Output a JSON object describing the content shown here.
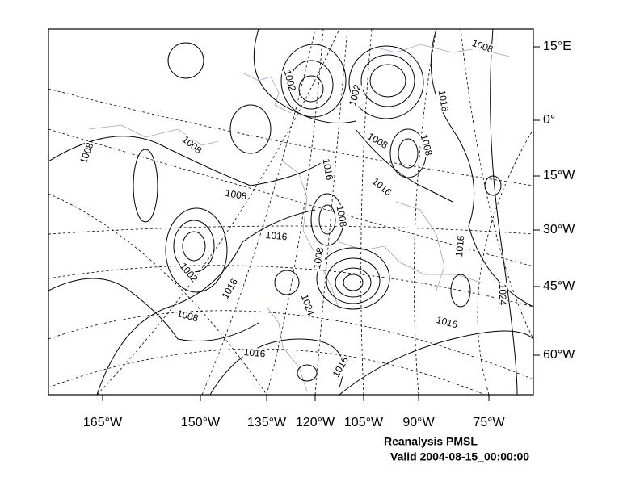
{
  "map": {
    "lat_labels": [
      "15°E",
      "0°",
      "15°W",
      "30°W",
      "45°W",
      "60°W"
    ],
    "lon_labels": [
      "165°W",
      "150°W",
      "135°W",
      "120°W",
      "105°W",
      "90°W",
      "75°W"
    ],
    "contour_labels": [
      "1008",
      "1008",
      "1002",
      "1002",
      "1016",
      "1008",
      "1008",
      "1008",
      "1016",
      "1016",
      "1008",
      "1008",
      "1016",
      "1016",
      "1002",
      "1016",
      "1008",
      "1024",
      "1024",
      "1008",
      "1016",
      "1016",
      "1016"
    ]
  },
  "caption": {
    "title": "Reanalysis PMSL",
    "valid": "Valid 2004-08-15_00:00:00"
  }
}
